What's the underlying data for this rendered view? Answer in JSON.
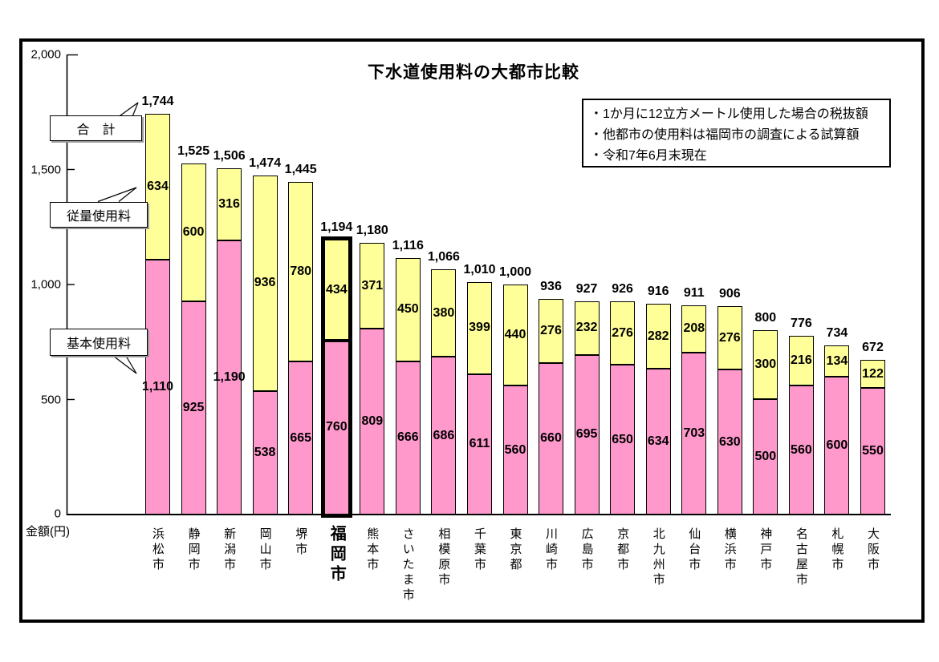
{
  "title": "下水道使用料の大都市比較",
  "y_axis": {
    "unit_label": "金額(円)",
    "ticks": [
      "2,000",
      "1,500",
      "1,000",
      "500",
      "0"
    ]
  },
  "notes": {
    "lines": [
      "・1か月に12立方メートル使用した場合の税抜額",
      "・他都市の使用料は福岡市の調査による試算額",
      "・令和7年6月末現在"
    ]
  },
  "legend": {
    "total_label": "合　計",
    "volume_label": "従量使用料",
    "basic_label": "基本使用料"
  },
  "colors": {
    "basic_fee": "#FF99CC",
    "volume_fee": "#FFFF99",
    "bar_outline": "#000000",
    "highlight_border": "#000000"
  },
  "chart_data": {
    "type": "bar",
    "stacked": true,
    "title": "下水道使用料の大都市比較",
    "ylabel": "金額(円)",
    "ylim": [
      0,
      2000
    ],
    "y_tick_interval": 500,
    "grid": false,
    "legend_position": "callout-left",
    "highlight_category": "福岡市",
    "categories": [
      "浜松市",
      "静岡市",
      "新潟市",
      "岡山市",
      "堺市",
      "福岡市",
      "熊本市",
      "さいたま市",
      "相模原市",
      "千葉市",
      "東京都",
      "川崎市",
      "広島市",
      "京都市",
      "北九州市",
      "仙台市",
      "横浜市",
      "神戸市",
      "名古屋市",
      "札幌市",
      "大阪市"
    ],
    "series": [
      {
        "name": "基本使用料",
        "color": "#FF99CC",
        "values": [
          1110,
          925,
          1190,
          538,
          665,
          760,
          809,
          666,
          686,
          611,
          560,
          660,
          695,
          650,
          634,
          703,
          630,
          500,
          560,
          600,
          550
        ]
      },
      {
        "name": "従量使用料",
        "color": "#FFFF99",
        "values": [
          634,
          600,
          316,
          936,
          780,
          434,
          371,
          450,
          380,
          399,
          440,
          276,
          232,
          276,
          282,
          208,
          276,
          300,
          216,
          134,
          122
        ]
      }
    ],
    "totals": [
      1744,
      1525,
      1506,
      1474,
      1445,
      1194,
      1180,
      1116,
      1066,
      1010,
      1000,
      936,
      927,
      926,
      916,
      911,
      906,
      800,
      776,
      734,
      672
    ]
  }
}
